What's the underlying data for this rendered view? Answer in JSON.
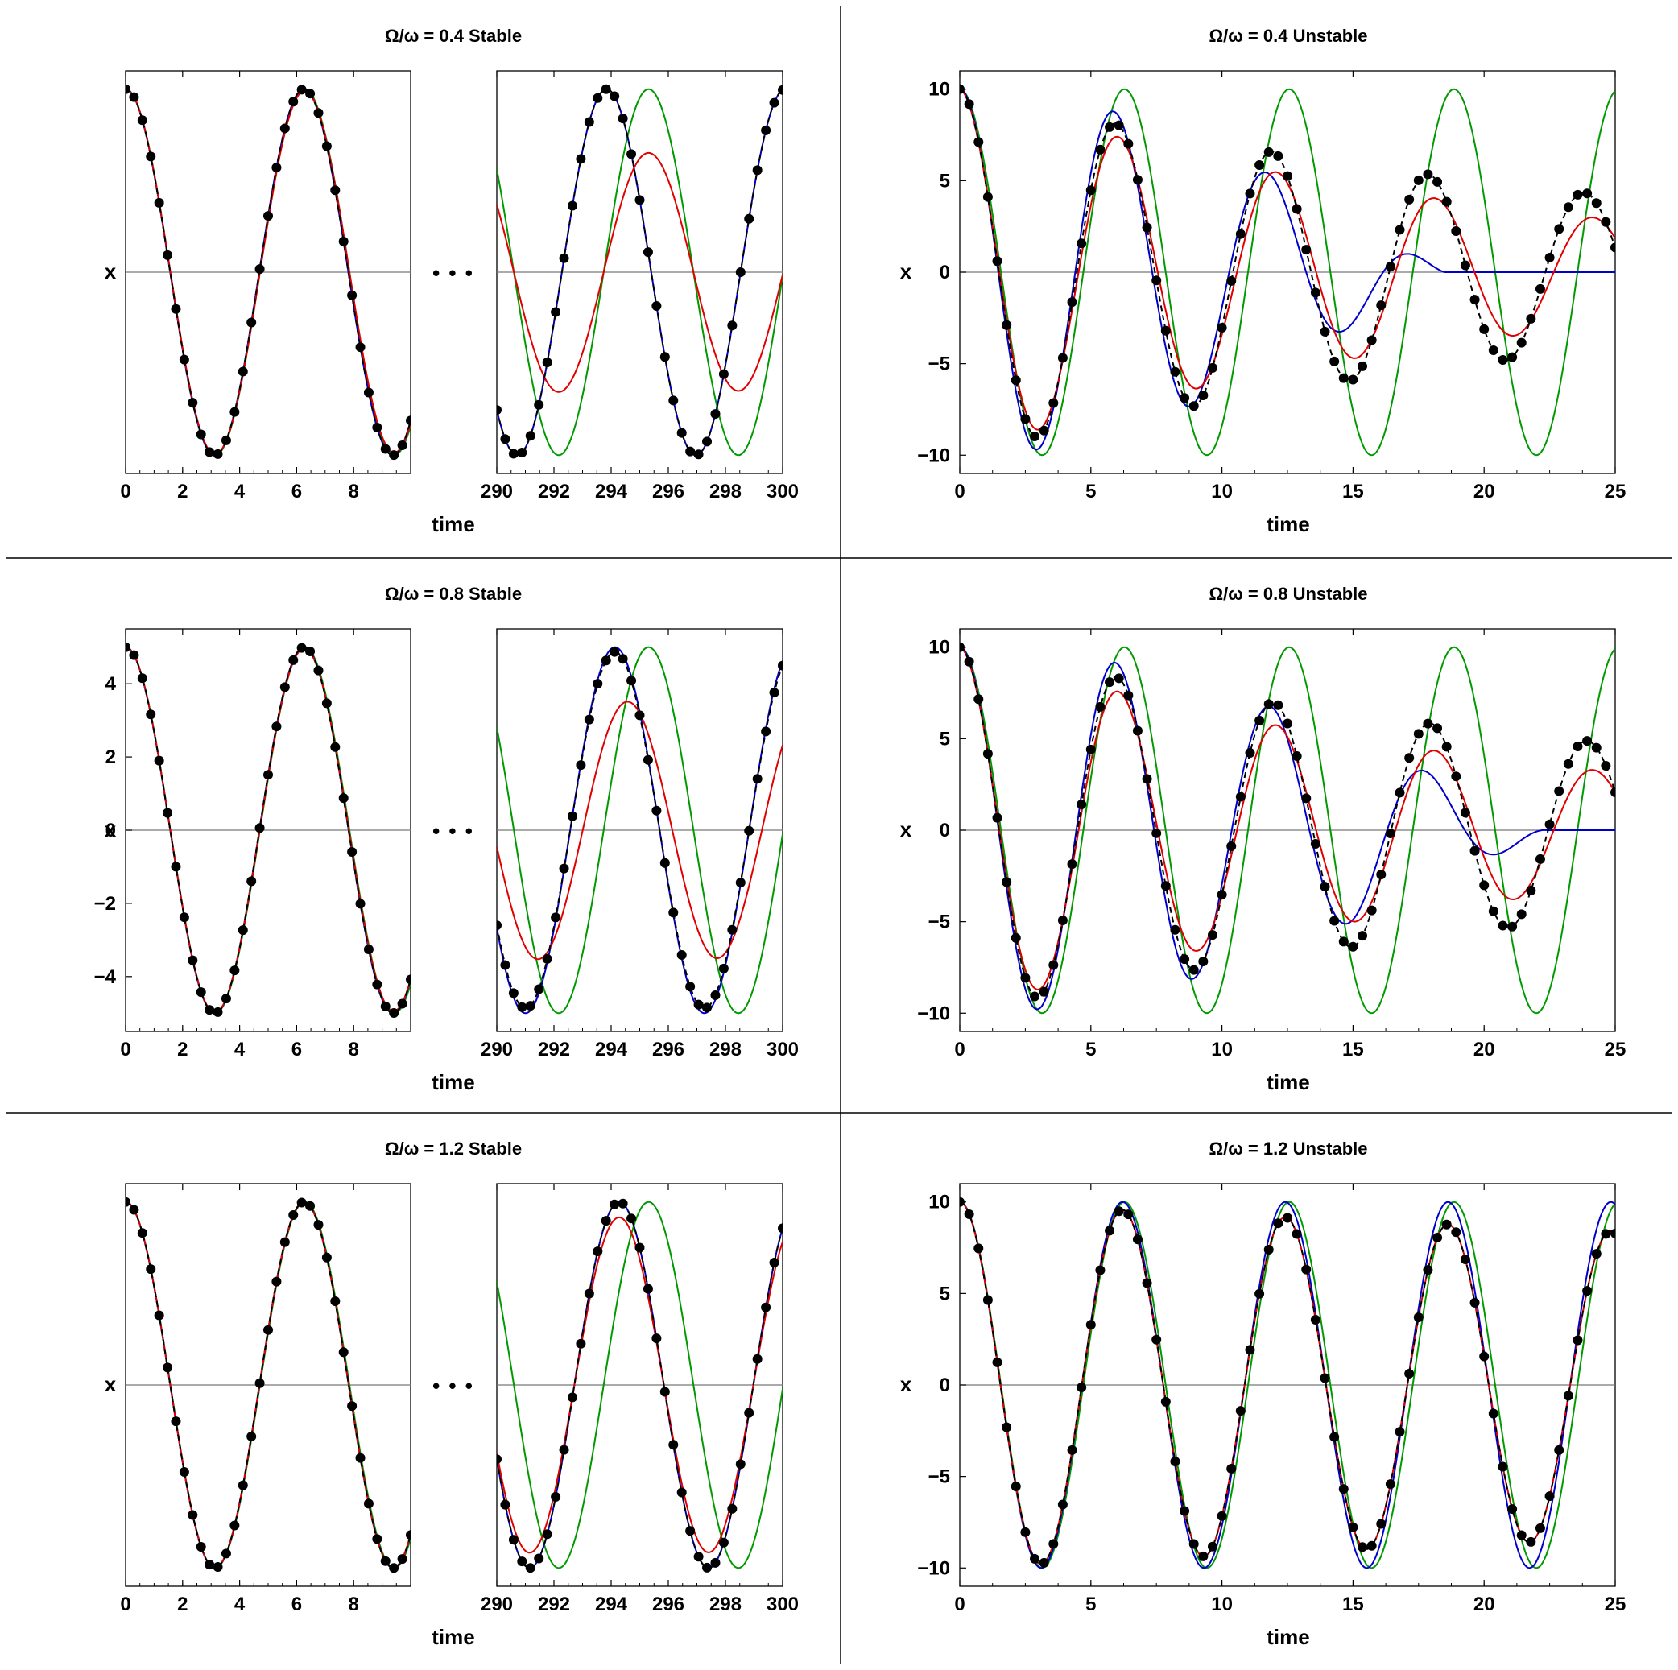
{
  "colors": {
    "exact": "#0000cc",
    "red_approx": "#e00000",
    "green_approx": "#009900",
    "numeric_dashed": "#000000",
    "markers": "#000000",
    "divider": "#000000",
    "zero_line": "#777777"
  },
  "chart_data": [
    {
      "type": "line",
      "title": "Ω/ω = 0.4 Stable",
      "xlabel": "time",
      "ylabel": "x",
      "ellipsis": "• • •",
      "y_tick_labels_shown": false,
      "ylim": [
        -5.5,
        5.5
      ],
      "segments": [
        {
          "xlim": [
            0,
            10
          ],
          "x_ticks": [
            0,
            2,
            4,
            6,
            8
          ]
        },
        {
          "xlim": [
            290,
            300
          ],
          "x_ticks": [
            290,
            292,
            294,
            296,
            298,
            300
          ]
        }
      ],
      "series": [
        {
          "color": "exact",
          "style": "solid",
          "params": {
            "A": 5,
            "w": 1.005,
            "decay": 0
          }
        },
        {
          "color": "red_approx",
          "style": "solid",
          "params": {
            "A": 5,
            "w": 1.0,
            "decay": 0.00145
          }
        },
        {
          "color": "green_approx",
          "style": "solid",
          "params": {
            "A": 5,
            "w": 1.0,
            "decay": 0
          }
        },
        {
          "color": "numeric_dashed",
          "style": "dashed-with-dots",
          "params": {
            "A": 5,
            "w": 1.005,
            "decay": 0
          }
        }
      ]
    },
    {
      "type": "line",
      "title": "Ω/ω = 0.4 Unstable",
      "xlabel": "time",
      "ylabel": "x",
      "xlim": [
        0,
        25
      ],
      "ylim": [
        -11,
        11
      ],
      "x_ticks": [
        0,
        5,
        10,
        15,
        20,
        25
      ],
      "y_ticks": [
        -10,
        -5,
        0,
        5,
        10
      ],
      "series": [
        {
          "color": "exact",
          "style": "solid",
          "params": {
            "A": 10,
            "w": 1.07,
            "beat": 0.085
          }
        },
        {
          "color": "red_approx",
          "style": "solid",
          "params": {
            "A": 10,
            "w": 1.04,
            "decay": 0.05
          }
        },
        {
          "color": "green_approx",
          "style": "solid",
          "params": {
            "A": 10,
            "w": 1.0,
            "decay": 0
          }
        },
        {
          "color": "numeric_dashed",
          "style": "dashed-with-dots",
          "params": {
            "A": 10,
            "w": 1.055,
            "decay": 0.035
          }
        }
      ]
    },
    {
      "type": "line",
      "title": "Ω/ω = 0.8 Stable",
      "xlabel": "time",
      "ylabel": "x",
      "ellipsis": "• • •",
      "y_tick_labels_shown": true,
      "ylim": [
        -5.5,
        5.5
      ],
      "y_ticks": [
        -4,
        -2,
        0,
        2,
        4
      ],
      "segments": [
        {
          "xlim": [
            0,
            10
          ],
          "x_ticks": [
            0,
            2,
            4,
            6,
            8
          ]
        },
        {
          "xlim": [
            290,
            300
          ],
          "x_ticks": [
            290,
            292,
            294,
            296,
            298,
            300
          ]
        }
      ],
      "series": [
        {
          "color": "exact",
          "style": "solid",
          "params": {
            "A": 5,
            "w": 1.004,
            "decay": 0
          }
        },
        {
          "color": "red_approx",
          "style": "solid",
          "params": {
            "A": 5,
            "w": 1.0025,
            "decay": 0.0012
          }
        },
        {
          "color": "green_approx",
          "style": "solid",
          "params": {
            "A": 5,
            "w": 1.0,
            "decay": 0
          }
        },
        {
          "color": "numeric_dashed",
          "style": "dashed-with-dots",
          "params": {
            "A": 5,
            "w": 1.004,
            "decay": 9e-05
          }
        }
      ]
    },
    {
      "type": "line",
      "title": "Ω/ω = 0.8 Unstable",
      "xlabel": "time",
      "ylabel": "x",
      "xlim": [
        0,
        25
      ],
      "ylim": [
        -11,
        11
      ],
      "x_ticks": [
        0,
        5,
        10,
        15,
        20,
        25
      ],
      "y_ticks": [
        -10,
        -5,
        0,
        5,
        10
      ],
      "series": [
        {
          "color": "exact",
          "style": "solid",
          "params": {
            "A": 10,
            "w": 1.06,
            "beat": 0.07
          }
        },
        {
          "color": "red_approx",
          "style": "solid",
          "params": {
            "A": 10,
            "w": 1.04,
            "decay": 0.046
          }
        },
        {
          "color": "green_approx",
          "style": "solid",
          "params": {
            "A": 10,
            "w": 1.0,
            "decay": 0
          }
        },
        {
          "color": "numeric_dashed",
          "style": "dashed-with-dots",
          "params": {
            "A": 10,
            "w": 1.05,
            "decay": 0.03
          }
        }
      ]
    },
    {
      "type": "line",
      "title": "Ω/ω = 1.2 Stable",
      "xlabel": "time",
      "ylabel": "x",
      "ellipsis": "• • •",
      "y_tick_labels_shown": false,
      "ylim": [
        -5.5,
        5.5
      ],
      "segments": [
        {
          "xlim": [
            0,
            10
          ],
          "x_ticks": [
            0,
            2,
            4,
            6,
            8
          ]
        },
        {
          "xlim": [
            290,
            300
          ],
          "x_ticks": [
            290,
            292,
            294,
            296,
            298,
            300
          ]
        }
      ],
      "series": [
        {
          "color": "exact",
          "style": "solid",
          "params": {
            "A": 5,
            "w": 1.0035,
            "decay": 0
          }
        },
        {
          "color": "red_approx",
          "style": "solid",
          "params": {
            "A": 5,
            "w": 1.0035,
            "decay": 0.0003
          }
        },
        {
          "color": "green_approx",
          "style": "solid",
          "params": {
            "A": 5,
            "w": 1.0,
            "decay": 0
          }
        },
        {
          "color": "numeric_dashed",
          "style": "dashed-with-dots",
          "params": {
            "A": 5,
            "w": 1.0035,
            "decay": 0
          }
        }
      ]
    },
    {
      "type": "line",
      "title": "Ω/ω = 1.2 Unstable",
      "xlabel": "time",
      "ylabel": "x",
      "xlim": [
        0,
        25
      ],
      "ylim": [
        -11,
        11
      ],
      "x_ticks": [
        0,
        5,
        10,
        15,
        20,
        25
      ],
      "y_ticks": [
        -10,
        -5,
        0,
        5,
        10
      ],
      "series": [
        {
          "color": "exact",
          "style": "solid",
          "params": {
            "A": 10,
            "w": 1.012,
            "decay": 0
          }
        },
        {
          "color": "red_approx",
          "style": "solid",
          "params": {
            "A": 10,
            "w": 1.012,
            "decay": 0.007
          }
        },
        {
          "color": "green_approx",
          "style": "solid",
          "params": {
            "A": 10,
            "w": 1.0,
            "decay": 0
          }
        },
        {
          "color": "numeric_dashed",
          "style": "dashed-with-dots",
          "params": {
            "A": 10,
            "w": 1.012,
            "decay": 0.007
          }
        }
      ]
    }
  ]
}
